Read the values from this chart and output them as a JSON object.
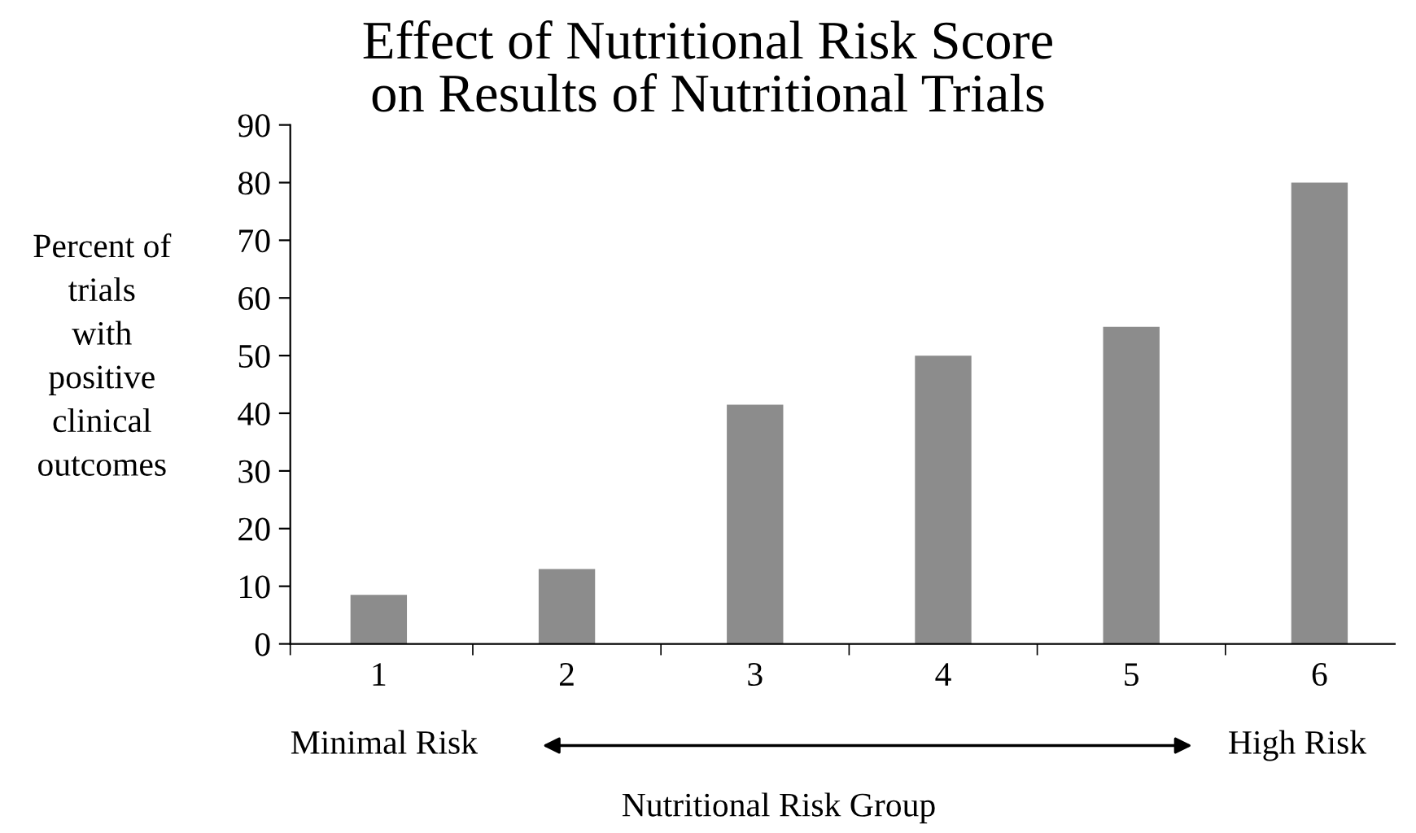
{
  "chart_data": {
    "type": "bar",
    "title": "Effect of Nutritional Risk Score\non Results of Nutritional Trials",
    "categories": [
      "1",
      "2",
      "3",
      "4",
      "5",
      "6"
    ],
    "values": [
      8.5,
      13,
      41.5,
      50,
      55,
      80
    ],
    "color": "#8c8c8c",
    "ylabel": "Percent of\ntrials\nwith\npositive\nclinical\noutcomes",
    "xlabel": "Nutritional Risk Group",
    "annotations": [
      "Minimal Risk",
      "High Risk"
    ],
    "ylim": [
      0,
      90
    ],
    "yticks": [
      0,
      10,
      20,
      30,
      40,
      50,
      60,
      70,
      80,
      90
    ],
    "grid": false,
    "legend": false
  }
}
